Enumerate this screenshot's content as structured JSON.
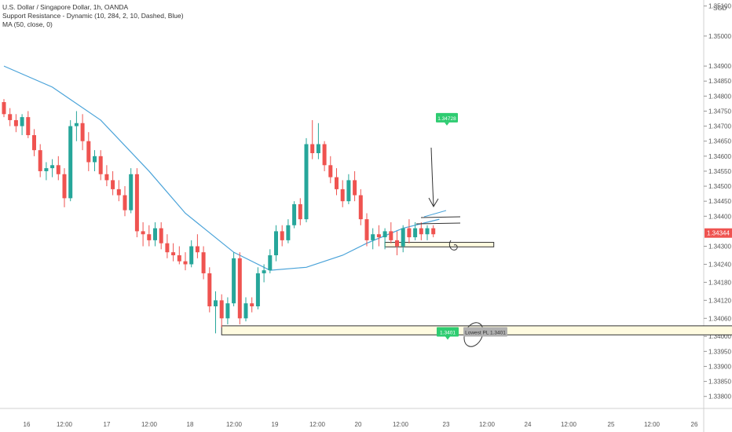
{
  "legend": {
    "title": "U.S. Dollar / Singapore Dollar, 1h, OANDA",
    "indicator1": "Support Resistance - Dynamic (10, 284, 2, 10, Dashed, Blue)",
    "indicator2": "MA (50, close, 0)"
  },
  "colors": {
    "up": "#26a69a",
    "down": "#ef5350",
    "ma": "#4aa3d9",
    "zone_fill": "#fffbe0",
    "zone_stroke": "#333333",
    "price_label": "#ef5350",
    "green_label": "#2ecc71",
    "grey_label": "#b0b0b0"
  },
  "chart_data": {
    "type": "candlestick",
    "symbol": "USDSGD",
    "timeframe": "1h",
    "currency": "SGD",
    "ylim": [
      1.3376,
      1.3512
    ],
    "y_ticks": [
      "1.35100",
      "1.35000",
      "1.34900",
      "1.34850",
      "1.34800",
      "1.34750",
      "1.34700",
      "1.34650",
      "1.34600",
      "1.34550",
      "1.34500",
      "1.34450",
      "1.34400",
      "1.34300",
      "1.34240",
      "1.34180",
      "1.34120",
      "1.34060",
      "1.34000",
      "1.33950",
      "1.33900",
      "1.33850",
      "1.33800"
    ],
    "x_ticks": [
      "16",
      "12:00",
      "17",
      "12:00",
      "18",
      "12:00",
      "19",
      "12:00",
      "20",
      "12:00",
      "23",
      "12:00",
      "24",
      "12:00",
      "25",
      "12:00",
      "26"
    ],
    "last_price": "1.34344",
    "candles": [
      [
        1.3478,
        1.3479,
        1.3473,
        1.3474
      ],
      [
        1.3474,
        1.3476,
        1.347,
        1.3472
      ],
      [
        1.3472,
        1.3474,
        1.3468,
        1.347
      ],
      [
        1.347,
        1.3474,
        1.3467,
        1.3473
      ],
      [
        1.3473,
        1.3475,
        1.3466,
        1.3467
      ],
      [
        1.3467,
        1.3469,
        1.346,
        1.3462
      ],
      [
        1.3462,
        1.3464,
        1.3453,
        1.3455
      ],
      [
        1.3455,
        1.3458,
        1.3452,
        1.3456
      ],
      [
        1.3456,
        1.3459,
        1.3453,
        1.3457
      ],
      [
        1.3457,
        1.346,
        1.3452,
        1.3454
      ],
      [
        1.3454,
        1.3456,
        1.3443,
        1.3446
      ],
      [
        1.3446,
        1.3472,
        1.3445,
        1.347
      ],
      [
        1.347,
        1.3475,
        1.3465,
        1.3471
      ],
      [
        1.3471,
        1.3474,
        1.3462,
        1.3465
      ],
      [
        1.3465,
        1.3468,
        1.3455,
        1.3458
      ],
      [
        1.3458,
        1.3462,
        1.3455,
        1.346
      ],
      [
        1.346,
        1.3462,
        1.3452,
        1.3454
      ],
      [
        1.3454,
        1.3457,
        1.345,
        1.3452
      ],
      [
        1.3452,
        1.3455,
        1.3447,
        1.3449
      ],
      [
        1.3449,
        1.3452,
        1.3445,
        1.3447
      ],
      [
        1.3447,
        1.345,
        1.344,
        1.3442
      ],
      [
        1.3442,
        1.3456,
        1.3441,
        1.3454
      ],
      [
        1.3454,
        1.3456,
        1.3433,
        1.3435
      ],
      [
        1.3435,
        1.3438,
        1.343,
        1.3434
      ],
      [
        1.3434,
        1.3437,
        1.343,
        1.3432
      ],
      [
        1.3432,
        1.3438,
        1.343,
        1.3436
      ],
      [
        1.3436,
        1.3438,
        1.3429,
        1.3431
      ],
      [
        1.3431,
        1.3434,
        1.3426,
        1.3428
      ],
      [
        1.3428,
        1.3431,
        1.3425,
        1.3427
      ],
      [
        1.3427,
        1.343,
        1.3424,
        1.3425
      ],
      [
        1.3425,
        1.3428,
        1.3422,
        1.3424
      ],
      [
        1.3424,
        1.3432,
        1.3423,
        1.343
      ],
      [
        1.343,
        1.3434,
        1.3426,
        1.3428
      ],
      [
        1.3428,
        1.343,
        1.3419,
        1.3421
      ],
      [
        1.3421,
        1.3423,
        1.3408,
        1.341
      ],
      [
        1.341,
        1.3415,
        1.3401,
        1.3412
      ],
      [
        1.3412,
        1.3414,
        1.3403,
        1.3406
      ],
      [
        1.3406,
        1.3413,
        1.3404,
        1.3411
      ],
      [
        1.3411,
        1.3428,
        1.341,
        1.3426
      ],
      [
        1.3426,
        1.3428,
        1.3404,
        1.3406
      ],
      [
        1.3406,
        1.3413,
        1.3405,
        1.3411
      ],
      [
        1.3411,
        1.3413,
        1.3408,
        1.341
      ],
      [
        1.341,
        1.3423,
        1.3409,
        1.3421
      ],
      [
        1.3421,
        1.3424,
        1.3418,
        1.3422
      ],
      [
        1.3422,
        1.3429,
        1.3421,
        1.3427
      ],
      [
        1.3427,
        1.3437,
        1.3425,
        1.3435
      ],
      [
        1.3435,
        1.3437,
        1.343,
        1.3432
      ],
      [
        1.3432,
        1.3439,
        1.3431,
        1.3437
      ],
      [
        1.3437,
        1.3445,
        1.3436,
        1.3444
      ],
      [
        1.3444,
        1.3446,
        1.3437,
        1.3439
      ],
      [
        1.3439,
        1.3466,
        1.3438,
        1.3464
      ],
      [
        1.3464,
        1.3472,
        1.3459,
        1.3461
      ],
      [
        1.3461,
        1.3471,
        1.3459,
        1.3464
      ],
      [
        1.3464,
        1.3465,
        1.3455,
        1.3457
      ],
      [
        1.3457,
        1.346,
        1.3451,
        1.3453
      ],
      [
        1.3453,
        1.3456,
        1.3447,
        1.3449
      ],
      [
        1.3449,
        1.3452,
        1.3443,
        1.3445
      ],
      [
        1.3445,
        1.3454,
        1.3444,
        1.3452
      ],
      [
        1.3452,
        1.3455,
        1.3445,
        1.3447
      ],
      [
        1.3447,
        1.3449,
        1.3437,
        1.3439
      ],
      [
        1.3439,
        1.3441,
        1.343,
        1.3432
      ],
      [
        1.3432,
        1.3436,
        1.3429,
        1.3434
      ],
      [
        1.3434,
        1.3437,
        1.343,
        1.3433
      ],
      [
        1.3433,
        1.3436,
        1.3429,
        1.3435
      ],
      [
        1.3435,
        1.3438,
        1.3431,
        1.3432
      ],
      [
        1.3432,
        1.3435,
        1.3427,
        1.343
      ],
      [
        1.343,
        1.3437,
        1.3428,
        1.3436
      ],
      [
        1.3436,
        1.3439,
        1.3431,
        1.3433
      ],
      [
        1.3433,
        1.3438,
        1.3432,
        1.3436
      ],
      [
        1.3436,
        1.3438,
        1.3432,
        1.3434
      ],
      [
        1.3434,
        1.3437,
        1.3432,
        1.3436
      ],
      [
        1.3436,
        1.3437,
        1.3433,
        1.3434
      ]
    ],
    "moving_average": {
      "name": "MA (50, close, 0)",
      "points": [
        [
          0,
          1.349
        ],
        [
          8,
          1.3483
        ],
        [
          16,
          1.3472
        ],
        [
          24,
          1.3455
        ],
        [
          30,
          1.3441
        ],
        [
          38,
          1.3428
        ],
        [
          44,
          1.3422
        ],
        [
          50,
          1.3423
        ],
        [
          56,
          1.3427
        ],
        [
          60,
          1.3431
        ],
        [
          66,
          1.3436
        ],
        [
          72,
          1.3439
        ]
      ]
    },
    "zones": [
      {
        "name": "support-zone-lower",
        "from_bar": 36,
        "to_bar": 123,
        "top": 1.34035,
        "bottom": 1.34005
      },
      {
        "name": "support-zone-upper",
        "from_bar": 63,
        "to_bar": 81,
        "top": 1.34313,
        "bottom": 1.34298
      }
    ],
    "labels": [
      {
        "text": "1.34728",
        "bar": 75,
        "price": 1.34728,
        "kind": "green"
      },
      {
        "text": "1.3401",
        "bar": 75,
        "price": 1.34015,
        "kind": "green"
      },
      {
        "text": "Lowest PL 1.3401",
        "bar": 82,
        "price": 1.34015,
        "kind": "grey"
      }
    ]
  }
}
